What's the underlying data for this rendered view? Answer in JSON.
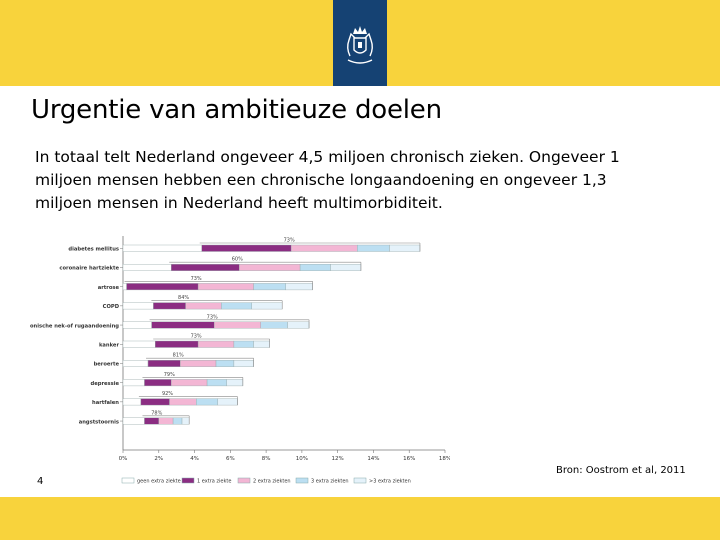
{
  "slide": {
    "title": "Urgentie van ambitieuze doelen",
    "intro": "In totaal telt Nederland ongeveer 4,5 miljoen chronisch zieken. Ongeveer 1\nmiljoen mensen hebben een chronische longaandoening en ongeveer  1,3\nmiljoen mensen in Nederland heeft multimorbiditeit.",
    "source": "Bron: Oostrom et al, 2011",
    "page_number": "4",
    "logo_icon": "coat-of-arms-icon",
    "colors": {
      "header": "#f8d33c",
      "logo_background": "#154273"
    }
  },
  "chart_data": {
    "type": "bar",
    "stacked": true,
    "orientation": "horizontal",
    "categories": [
      "diabetes mellitus",
      "coronaire hartziekte",
      "artrose",
      "COPD",
      "chronische nek-of rugaandoening",
      "kanker",
      "beroerte",
      "depressie",
      "hartfalen",
      "angststoornis"
    ],
    "series": [
      {
        "name": "geen extra ziekte",
        "color": "#ffffff",
        "values": [
          4.4,
          2.7,
          0.2,
          1.7,
          1.6,
          1.8,
          1.4,
          1.2,
          1.0,
          1.2
        ]
      },
      {
        "name": "1 extra ziekte",
        "color": "#8b2d82",
        "values": [
          5.0,
          3.8,
          4.0,
          1.8,
          3.5,
          2.4,
          1.8,
          1.5,
          1.6,
          0.8
        ]
      },
      {
        "name": "2 extra ziekten",
        "color": "#f3b6d4",
        "values": [
          3.7,
          3.4,
          3.1,
          2.0,
          2.6,
          2.0,
          2.0,
          2.0,
          1.5,
          0.8
        ]
      },
      {
        "name": "3 extra ziekten",
        "color": "#bcdff2",
        "values": [
          1.8,
          1.7,
          1.8,
          1.7,
          1.5,
          1.1,
          1.0,
          1.1,
          1.2,
          0.5
        ]
      },
      {
        "name": ">3 extra ziekten",
        "color": "#e5f2fa",
        "values": [
          1.7,
          1.7,
          1.5,
          1.7,
          1.2,
          0.9,
          1.1,
          0.9,
          1.1,
          0.4
        ]
      }
    ],
    "annotations": [
      "73%",
      "60%",
      "73%",
      "84%",
      "73%",
      "73%",
      "81%",
      "79%",
      "92%",
      "78%"
    ],
    "xticks": [
      "0%",
      "2%",
      "4%",
      "6%",
      "8%",
      "10%",
      "12%",
      "14%",
      "16%",
      "18%"
    ],
    "xlim": [
      0,
      18
    ],
    "legend_position": "bottom",
    "grid": false
  }
}
